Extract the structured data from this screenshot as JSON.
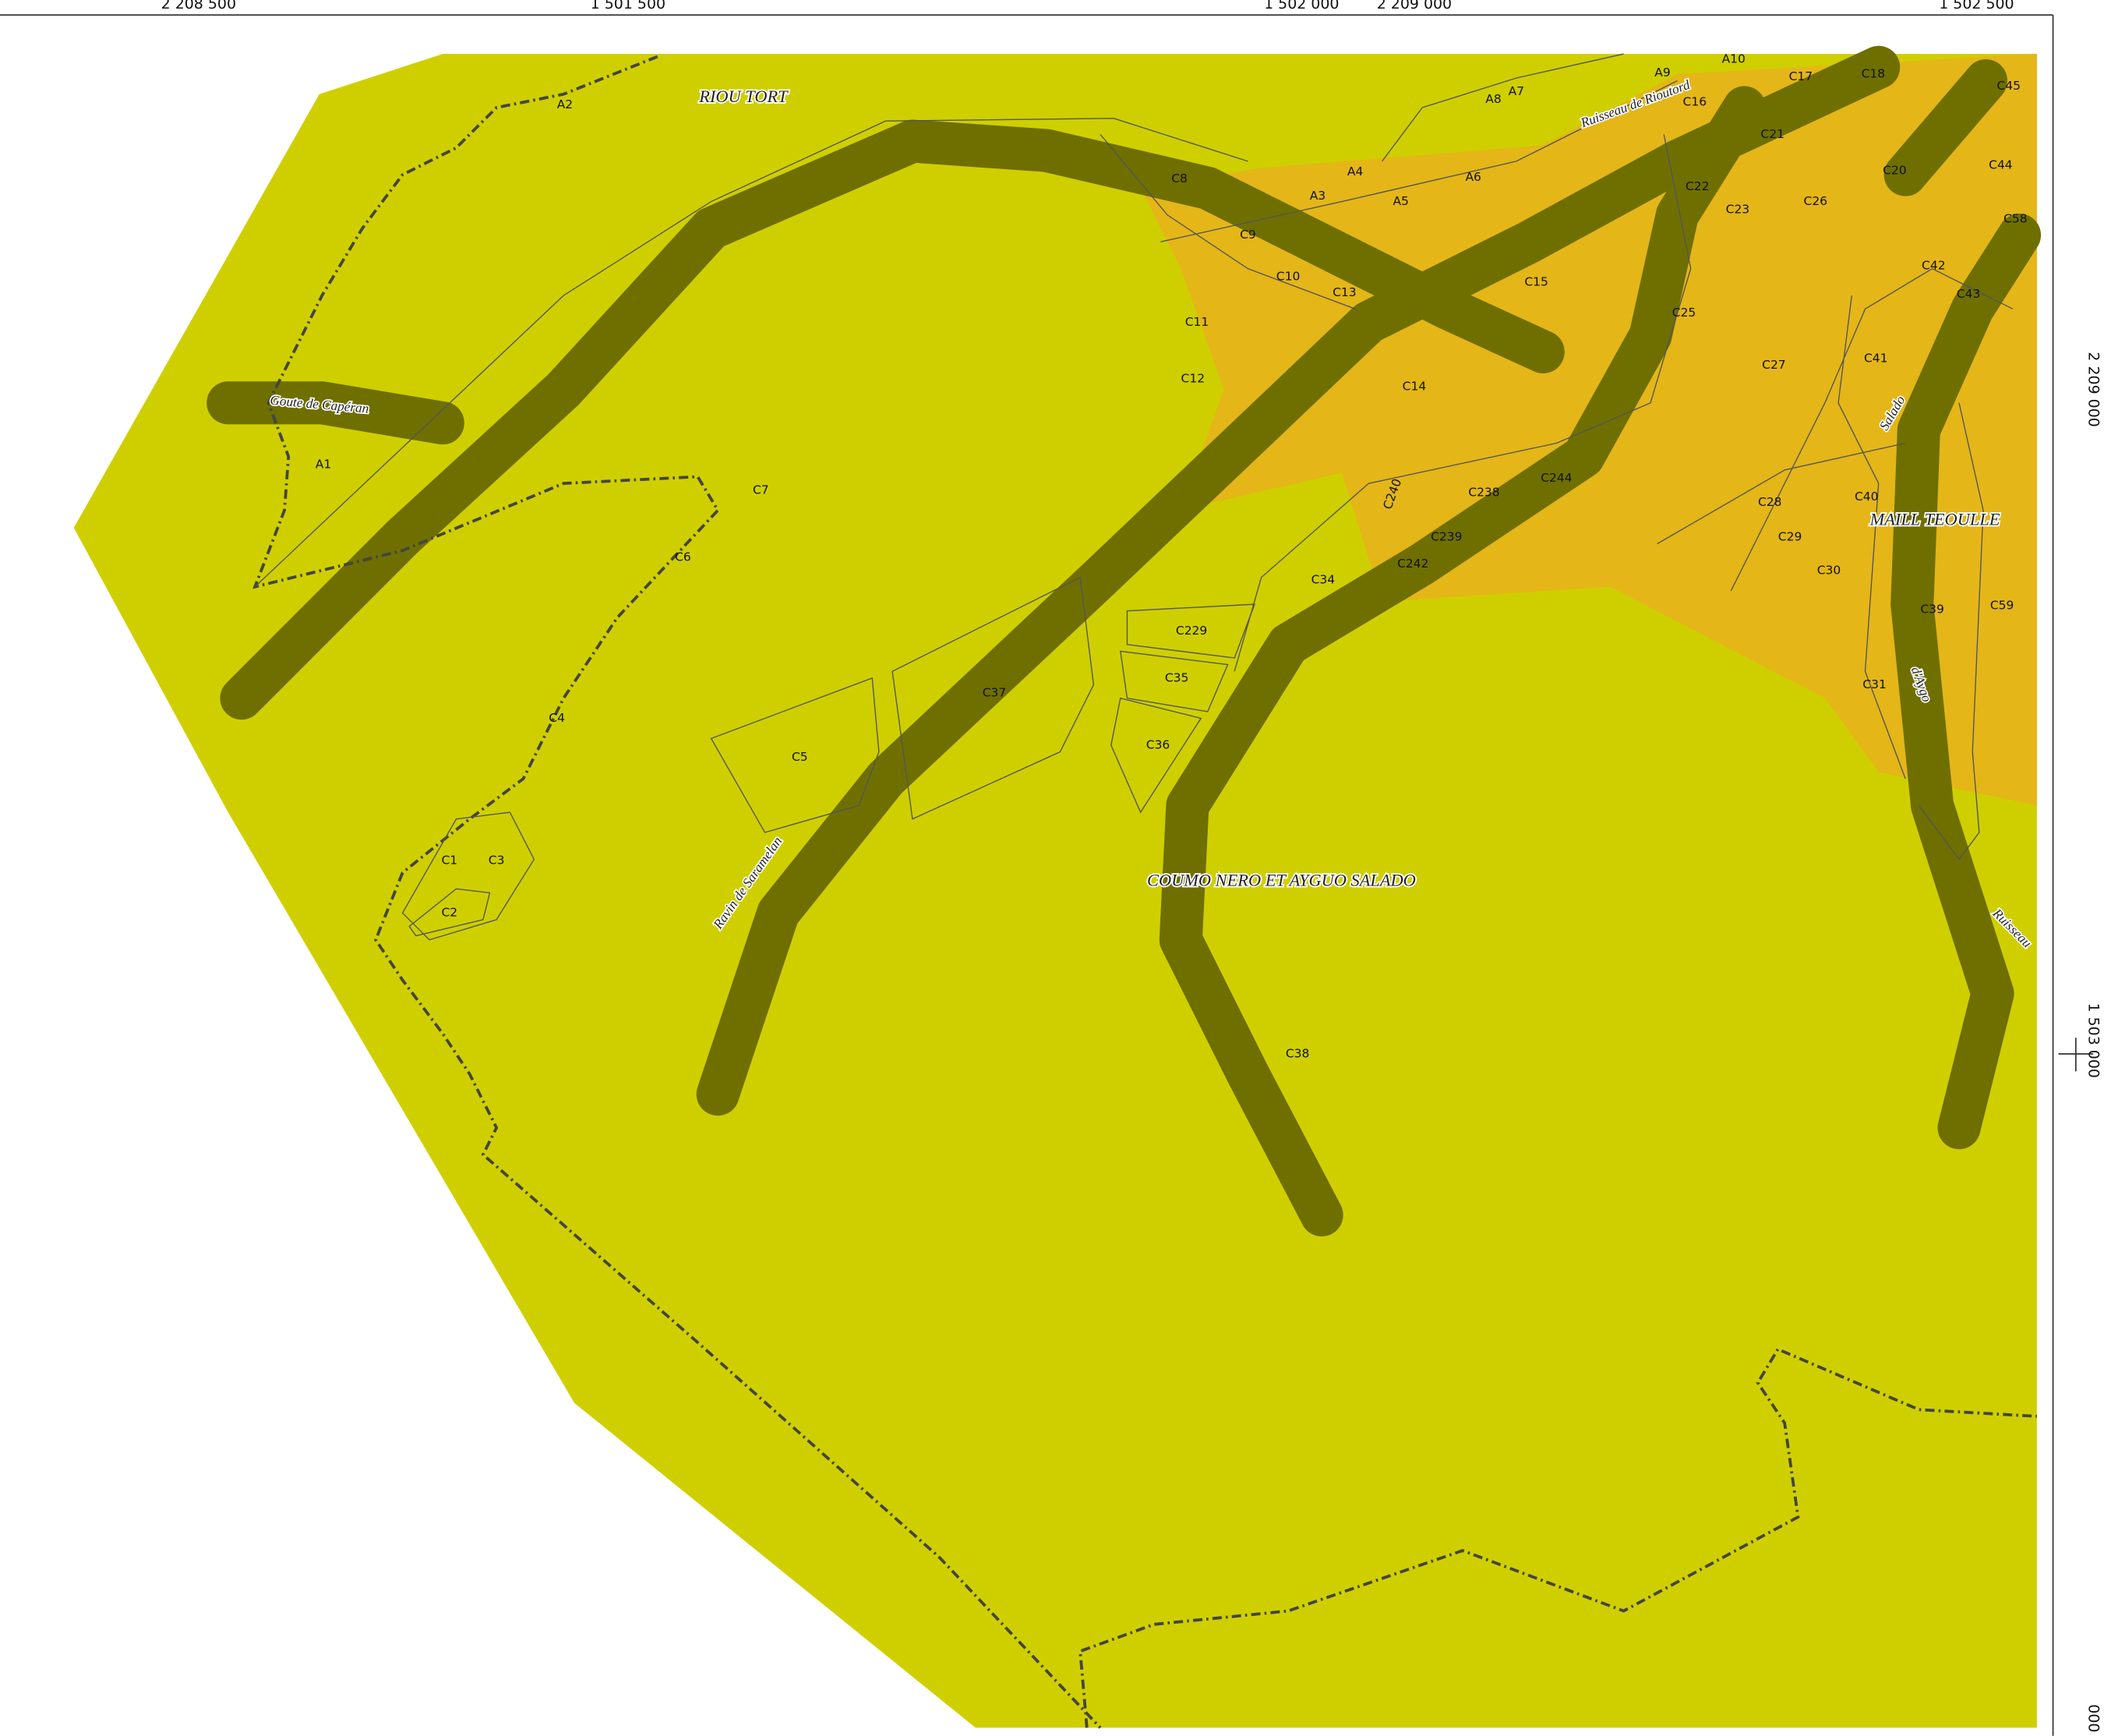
{
  "frame": {
    "top_coords": [
      "2 208 500",
      "1 501 500",
      "1 502 000",
      "2 209 000",
      "1 502 500"
    ],
    "right_coords": [
      "2 209 000",
      "1 503 000",
      "000"
    ]
  },
  "places": [
    "RIOU TORT",
    "COUMO NERO ET AYGUO SALADO",
    "MAILL TEOULLE"
  ],
  "streams": [
    "Goute de Capéran",
    "Ravin de Saramelan",
    "Ruisseau de Rioutord",
    "Salado",
    "d'Aygo",
    "Ruisseau"
  ],
  "parcels": [
    "A1",
    "A2",
    "A3",
    "A4",
    "A5",
    "A6",
    "A7",
    "A8",
    "A9",
    "A10",
    "C1",
    "C2",
    "C3",
    "C4",
    "C5",
    "C6",
    "C7",
    "C8",
    "C9",
    "C10",
    "C11",
    "C12",
    "C13",
    "C14",
    "C15",
    "C16",
    "C17",
    "C18",
    "C20",
    "C21",
    "C22",
    "C23",
    "C25",
    "C26",
    "C27",
    "C28",
    "C29",
    "C30",
    "C31",
    "C34",
    "C35",
    "C36",
    "C37",
    "C38",
    "C39",
    "C40",
    "C41",
    "C42",
    "C43",
    "C44",
    "C45",
    "C58",
    "C59",
    "C229",
    "C238",
    "C239",
    "C240",
    "C242",
    "C244"
  ]
}
